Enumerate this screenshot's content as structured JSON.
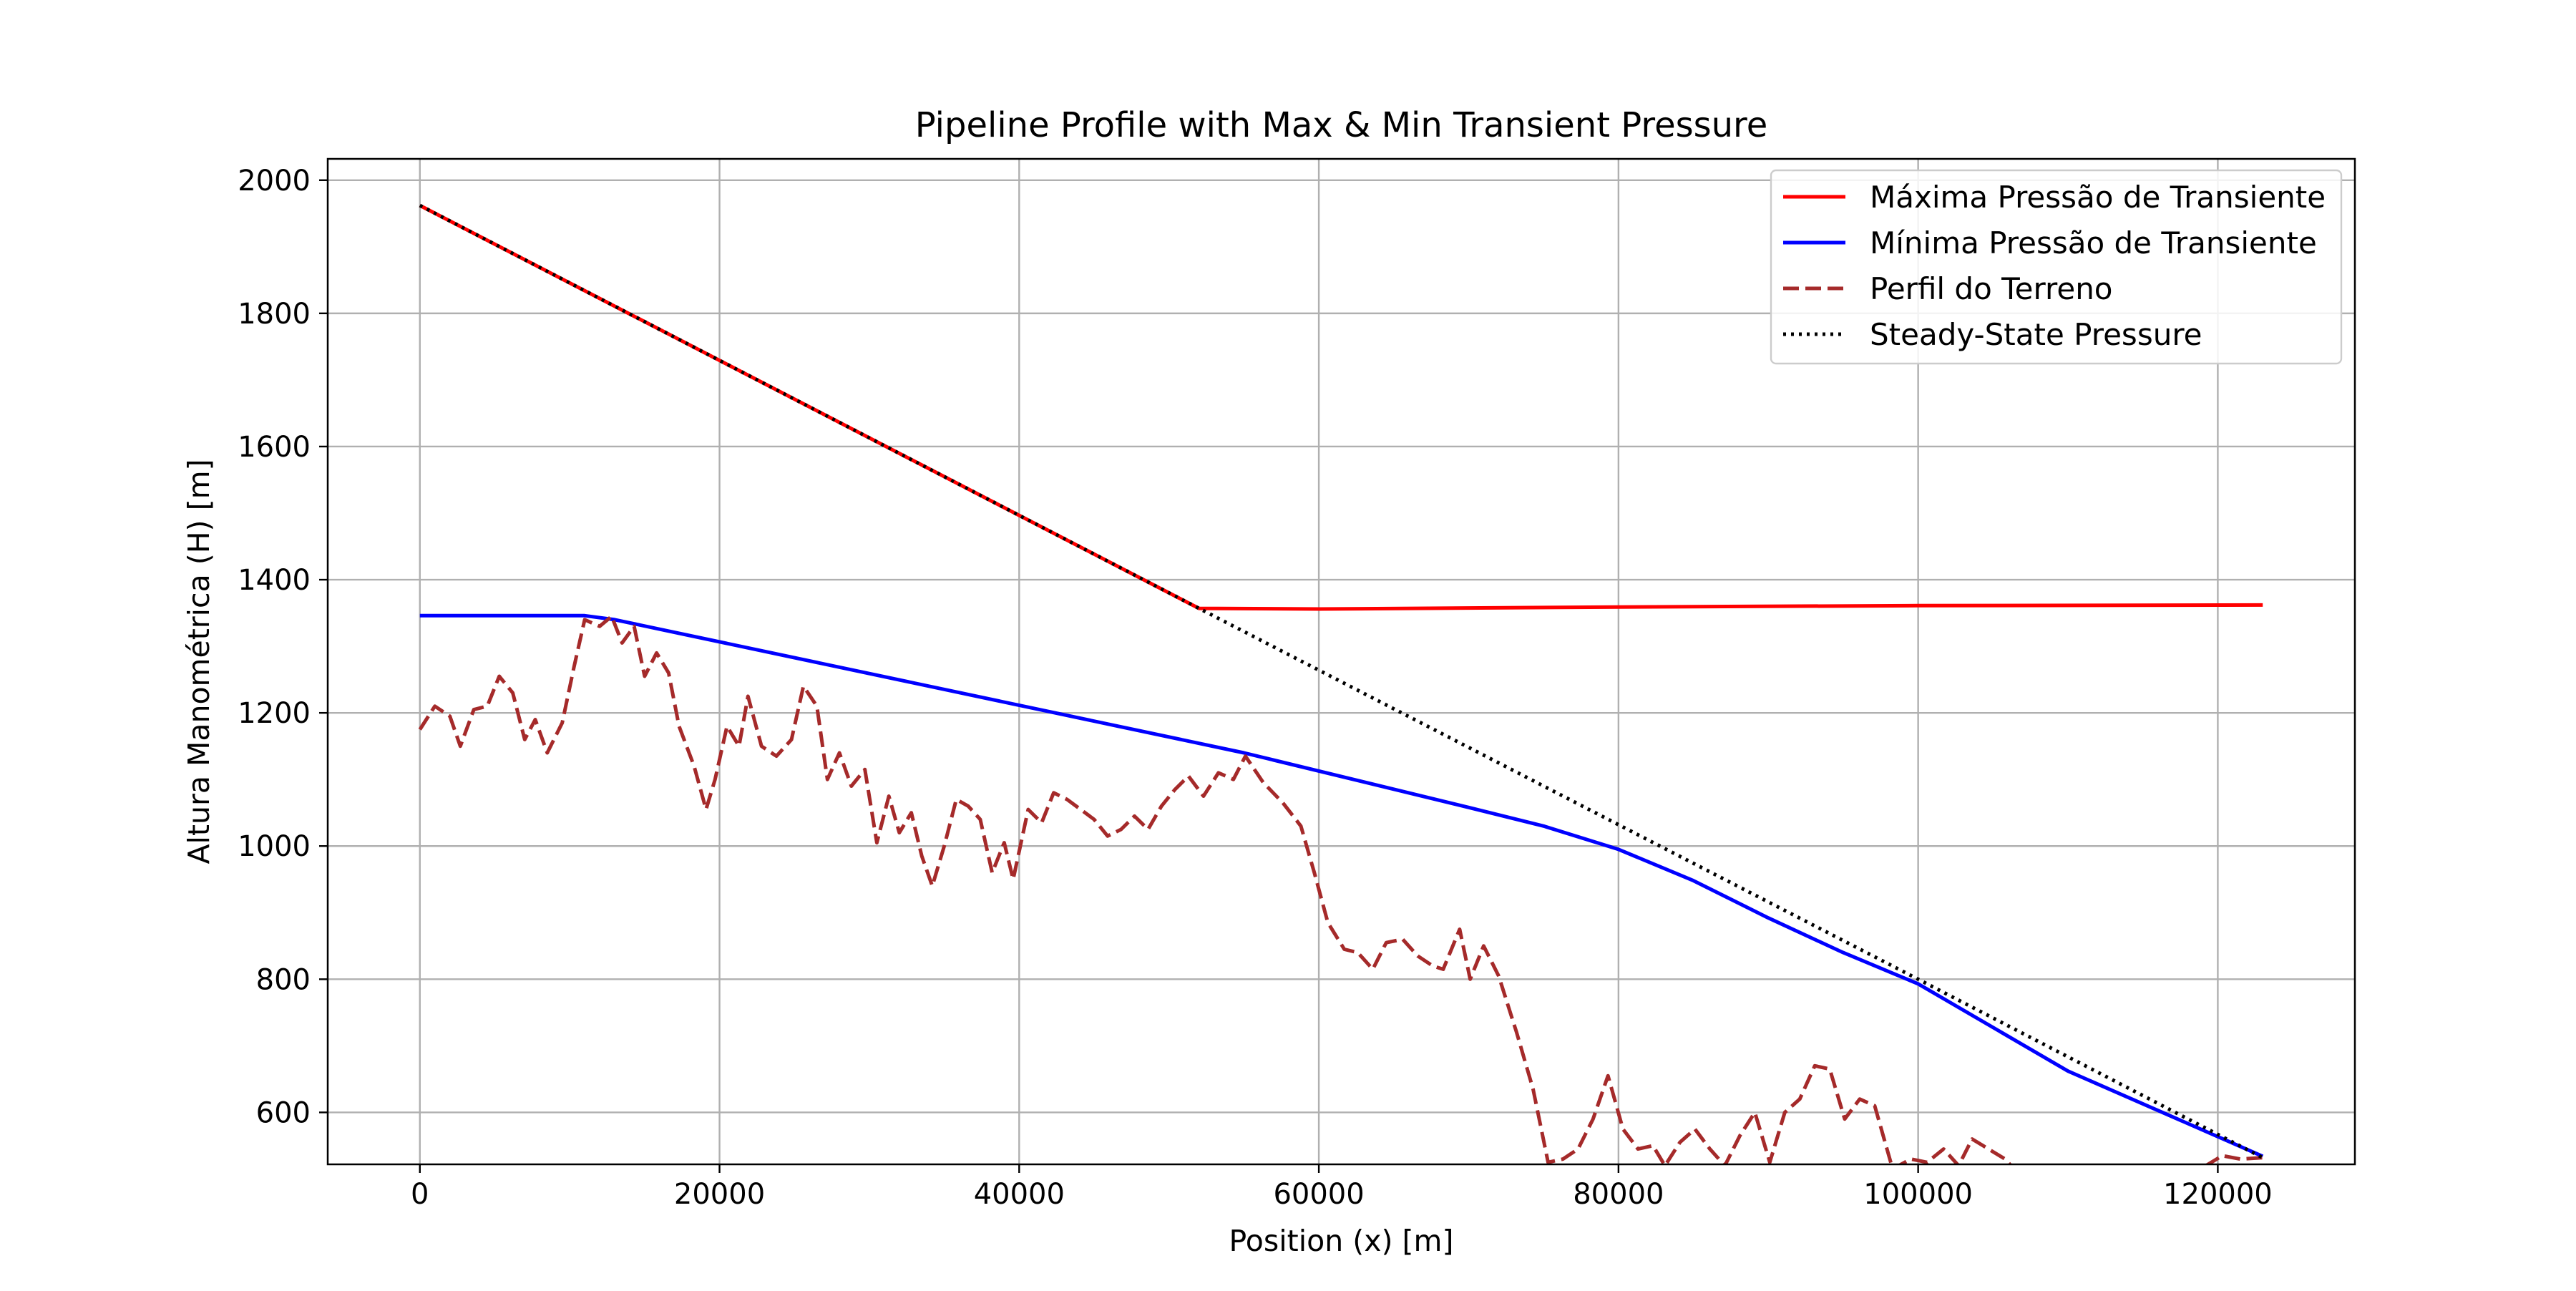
{
  "chart_data": {
    "type": "line",
    "title": "Pipeline Profile with Max & Min Transient Pressure",
    "xlabel": "Position (x) [m]",
    "ylabel": "Altura Manométrica (H) [m]",
    "xlim": [
      -6150,
      129150
    ],
    "ylim": [
      522,
      2032
    ],
    "x_ticks": [
      0,
      20000,
      40000,
      60000,
      80000,
      100000,
      120000
    ],
    "y_ticks": [
      600,
      800,
      1000,
      1200,
      1400,
      1600,
      1800,
      2000
    ],
    "x_tick_labels": [
      "0",
      "20000",
      "40000",
      "60000",
      "80000",
      "100000",
      "120000"
    ],
    "y_tick_labels": [
      "600",
      "800",
      "1000",
      "1200",
      "1400",
      "1600",
      "1800",
      "2000"
    ],
    "grid": true,
    "legend_position": "top-right",
    "series": [
      {
        "name": "Máxima Pressão de Transiente",
        "color": "#ff0000",
        "line_style": "solid",
        "points": [
          [
            0,
            1962
          ],
          [
            52000,
            1357
          ],
          [
            60000,
            1356
          ],
          [
            80000,
            1359
          ],
          [
            100000,
            1361
          ],
          [
            123000,
            1362
          ]
        ]
      },
      {
        "name": "Mínima Pressão de Transiente",
        "color": "#0000ff",
        "line_style": "solid",
        "points": [
          [
            0,
            1346
          ],
          [
            11000,
            1346
          ],
          [
            13000,
            1340
          ],
          [
            55000,
            1140
          ],
          [
            70000,
            1058
          ],
          [
            75000,
            1030
          ],
          [
            80000,
            995
          ],
          [
            85000,
            948
          ],
          [
            90000,
            892
          ],
          [
            95000,
            840
          ],
          [
            100000,
            793
          ],
          [
            110000,
            662
          ],
          [
            123000,
            534
          ]
        ]
      },
      {
        "name": "Perfil do Terreno",
        "color": "#a52a2a",
        "line_style": "dashed",
        "points": [
          [
            0,
            1175
          ],
          [
            1000,
            1210
          ],
          [
            2000,
            1195
          ],
          [
            2700,
            1150
          ],
          [
            3600,
            1205
          ],
          [
            4500,
            1210
          ],
          [
            5300,
            1255
          ],
          [
            6200,
            1230
          ],
          [
            7000,
            1160
          ],
          [
            7700,
            1190
          ],
          [
            8500,
            1140
          ],
          [
            9500,
            1185
          ],
          [
            10300,
            1270
          ],
          [
            11000,
            1340
          ],
          [
            12000,
            1330
          ],
          [
            12800,
            1345
          ],
          [
            13500,
            1305
          ],
          [
            14300,
            1330
          ],
          [
            15000,
            1255
          ],
          [
            15800,
            1290
          ],
          [
            16600,
            1260
          ],
          [
            17300,
            1180
          ],
          [
            18300,
            1120
          ],
          [
            19100,
            1055
          ],
          [
            19700,
            1100
          ],
          [
            20500,
            1180
          ],
          [
            21300,
            1150
          ],
          [
            21900,
            1225
          ],
          [
            22800,
            1150
          ],
          [
            23800,
            1135
          ],
          [
            24800,
            1160
          ],
          [
            25600,
            1240
          ],
          [
            26500,
            1210
          ],
          [
            27200,
            1100
          ],
          [
            28000,
            1140
          ],
          [
            28800,
            1090
          ],
          [
            29700,
            1115
          ],
          [
            30500,
            1005
          ],
          [
            31300,
            1075
          ],
          [
            32000,
            1020
          ],
          [
            32800,
            1050
          ],
          [
            33500,
            985
          ],
          [
            34200,
            940
          ],
          [
            35000,
            1000
          ],
          [
            35800,
            1070
          ],
          [
            36600,
            1060
          ],
          [
            37400,
            1040
          ],
          [
            38200,
            960
          ],
          [
            39000,
            1005
          ],
          [
            39600,
            950
          ],
          [
            40600,
            1055
          ],
          [
            41500,
            1035
          ],
          [
            42300,
            1080
          ],
          [
            43200,
            1070
          ],
          [
            44100,
            1055
          ],
          [
            45000,
            1040
          ],
          [
            45900,
            1015
          ],
          [
            46800,
            1025
          ],
          [
            47700,
            1045
          ],
          [
            48600,
            1025
          ],
          [
            49500,
            1060
          ],
          [
            50400,
            1085
          ],
          [
            51300,
            1105
          ],
          [
            52300,
            1075
          ],
          [
            53300,
            1110
          ],
          [
            54300,
            1100
          ],
          [
            55100,
            1135
          ],
          [
            56300,
            1095
          ],
          [
            57600,
            1065
          ],
          [
            58800,
            1030
          ],
          [
            59700,
            960
          ],
          [
            60600,
            885
          ],
          [
            61700,
            845
          ],
          [
            62600,
            840
          ],
          [
            63600,
            815
          ],
          [
            64500,
            855
          ],
          [
            65600,
            860
          ],
          [
            66600,
            835
          ],
          [
            67600,
            820
          ],
          [
            68300,
            815
          ],
          [
            69400,
            875
          ],
          [
            70100,
            800
          ],
          [
            71000,
            850
          ],
          [
            72000,
            805
          ],
          [
            73200,
            720
          ],
          [
            74300,
            635
          ],
          [
            75300,
            525
          ],
          [
            76300,
            530
          ],
          [
            77300,
            545
          ],
          [
            78300,
            590
          ],
          [
            79300,
            655
          ],
          [
            80300,
            575
          ],
          [
            81300,
            545
          ],
          [
            82300,
            550
          ],
          [
            83100,
            520
          ],
          [
            84100,
            555
          ],
          [
            85100,
            575
          ],
          [
            86100,
            545
          ],
          [
            87100,
            520
          ],
          [
            88100,
            565
          ],
          [
            89100,
            600
          ],
          [
            90100,
            525
          ],
          [
            91100,
            600
          ],
          [
            92100,
            620
          ],
          [
            93100,
            670
          ],
          [
            94100,
            665
          ],
          [
            95100,
            590
          ],
          [
            96100,
            620
          ],
          [
            97100,
            610
          ],
          [
            98300,
            515
          ],
          [
            99500,
            530
          ],
          [
            100600,
            525
          ],
          [
            101700,
            545
          ],
          [
            102700,
            520
          ],
          [
            103600,
            560
          ],
          [
            104700,
            545
          ],
          [
            105800,
            530
          ],
          [
            106800,
            505
          ],
          [
            108000,
            520
          ],
          [
            109000,
            505
          ],
          [
            110200,
            515
          ],
          [
            111300,
            505
          ],
          [
            112400,
            500
          ],
          [
            113400,
            515
          ],
          [
            114500,
            505
          ],
          [
            115700,
            500
          ],
          [
            116900,
            500
          ],
          [
            118000,
            495
          ],
          [
            119200,
            520
          ],
          [
            120300,
            535
          ],
          [
            121500,
            530
          ],
          [
            123000,
            532
          ]
        ]
      },
      {
        "name": "Steady-State Pressure",
        "color": "#000000",
        "line_style": "dotted",
        "points": [
          [
            0,
            1962
          ],
          [
            52000,
            1357
          ],
          [
            100000,
            800
          ],
          [
            123000,
            532
          ]
        ]
      }
    ]
  }
}
